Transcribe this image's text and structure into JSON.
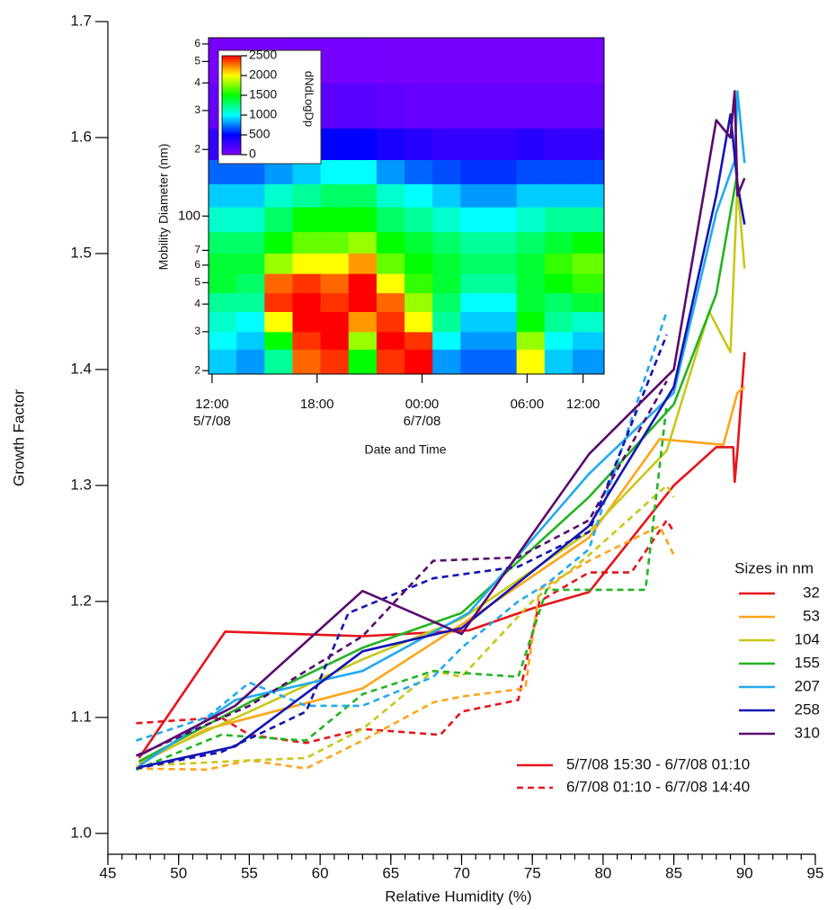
{
  "chart_data": [
    {
      "type": "line",
      "xlabel": "Relative Humidity (%)",
      "ylabel": "Growth Factor",
      "xlim": [
        45,
        95
      ],
      "xticks": [
        45,
        50,
        55,
        60,
        65,
        70,
        75,
        80,
        85,
        90,
        95
      ],
      "ylim": [
        0.982,
        1.7
      ],
      "yticks": [
        {
          "value": 1.0,
          "label": "1.0"
        },
        1.1,
        1.2,
        1.3,
        1.4,
        1.5,
        1.6,
        1.7
      ],
      "legend_title": "Sizes in nm",
      "periods": [
        {
          "label": "5/7/08 15:30 - 6/7/08 01:10",
          "dashed": false
        },
        {
          "label": "6/7/08 01:10 - 6/7/08 14:40",
          "dashed": true
        }
      ],
      "series": [
        {
          "name": "32",
          "color": "#e8141b",
          "periods": [
            {
              "x": [
                47.2,
                53.3,
                63,
                70.5,
                75,
                79,
                85,
                88,
                89.2,
                89.3,
                89.5,
                90
              ],
              "values": [
                1.065,
                1.174,
                1.17,
                1.175,
                1.194,
                1.208,
                1.3,
                1.333,
                1.333,
                1.303,
                1.33,
                1.415
              ]
            },
            {
              "x": [
                47,
                53,
                55,
                59,
                63,
                68.5,
                70,
                74,
                75.5,
                79,
                82,
                84.5,
                85
              ],
              "values": [
                1.095,
                1.1,
                1.085,
                1.078,
                1.09,
                1.085,
                1.105,
                1.115,
                1.2,
                1.225,
                1.225,
                1.27,
                1.26
              ]
            }
          ]
        },
        {
          "name": "53",
          "color": "#ffa519",
          "periods": [
            {
              "x": [
                47.2,
                52,
                63,
                70,
                79,
                84,
                88.5,
                89.5,
                90
              ],
              "values": [
                1.06,
                1.09,
                1.125,
                1.18,
                1.255,
                1.34,
                1.335,
                1.38,
                1.385
              ]
            },
            {
              "x": [
                47,
                52,
                55,
                59,
                63,
                68,
                70,
                74.5,
                75.5,
                79,
                84,
                85
              ],
              "values": [
                1.056,
                1.055,
                1.063,
                1.056,
                1.08,
                1.113,
                1.118,
                1.125,
                1.21,
                1.235,
                1.265,
                1.24
              ]
            }
          ]
        },
        {
          "name": "104",
          "color": "#c8c819",
          "periods": [
            {
              "x": [
                47.2,
                55,
                63,
                70,
                79,
                84.5,
                87.5,
                89,
                89.5,
                90
              ],
              "values": [
                1.062,
                1.105,
                1.15,
                1.185,
                1.26,
                1.33,
                1.45,
                1.415,
                1.56,
                1.487
              ]
            },
            {
              "x": [
                47,
                55,
                59,
                63,
                68,
                70,
                75,
                79,
                84.5,
                85
              ],
              "values": [
                1.058,
                1.063,
                1.065,
                1.09,
                1.14,
                1.135,
                1.2,
                1.24,
                1.3,
                1.29
              ]
            }
          ]
        },
        {
          "name": "155",
          "color": "#22b422",
          "periods": [
            {
              "x": [
                47.2,
                55,
                63,
                70,
                79,
                85,
                88,
                89.5
              ],
              "values": [
                1.062,
                1.113,
                1.16,
                1.19,
                1.29,
                1.37,
                1.465,
                1.57
              ]
            },
            {
              "x": [
                47,
                53,
                59,
                63,
                68,
                74,
                76,
                80,
                83,
                84.5
              ],
              "values": [
                1.055,
                1.085,
                1.08,
                1.12,
                1.14,
                1.135,
                1.21,
                1.21,
                1.21,
                1.37
              ]
            }
          ]
        },
        {
          "name": "207",
          "color": "#22aaee",
          "periods": [
            {
              "x": [
                47.2,
                54,
                63,
                70.5,
                79,
                85,
                88,
                89.3,
                89.5,
                90
              ],
              "values": [
                1.058,
                1.115,
                1.14,
                1.19,
                1.31,
                1.38,
                1.535,
                1.58,
                1.64,
                1.578
              ]
            },
            {
              "x": [
                47,
                52,
                55,
                59,
                63,
                68,
                70,
                74,
                76,
                79,
                84.5
              ],
              "values": [
                1.08,
                1.1,
                1.13,
                1.11,
                1.11,
                1.135,
                1.16,
                1.2,
                1.215,
                1.245,
                1.45
              ]
            }
          ]
        },
        {
          "name": "258",
          "color": "#1414b4",
          "periods": [
            {
              "x": [
                47.2,
                54,
                63,
                70,
                79,
                85,
                88,
                89,
                89.5,
                90
              ],
              "values": [
                1.057,
                1.075,
                1.157,
                1.177,
                1.265,
                1.385,
                1.55,
                1.62,
                1.56,
                1.525
              ]
            },
            {
              "x": [
                47,
                53,
                59,
                62,
                63,
                68,
                74,
                79,
                84.5
              ],
              "values": [
                1.056,
                1.07,
                1.105,
                1.19,
                1.195,
                1.22,
                1.23,
                1.26,
                1.43
              ]
            }
          ]
        },
        {
          "name": "310",
          "color": "#5a0a6e",
          "periods": [
            {
              "x": [
                47.2,
                54,
                63,
                70,
                79,
                85,
                88,
                89,
                89.3,
                89.5,
                90
              ],
              "values": [
                1.067,
                1.11,
                1.209,
                1.172,
                1.327,
                1.4,
                1.615,
                1.6,
                1.64,
                1.55,
                1.565
              ]
            },
            {
              "x": [
                47,
                55,
                63,
                68,
                74,
                79,
                84.5
              ],
              "values": [
                1.067,
                1.11,
                1.17,
                1.235,
                1.238,
                1.27,
                1.39
              ]
            }
          ]
        }
      ]
    },
    {
      "type": "heatmap",
      "xlabel": "Date and Time",
      "ylabel": "Mobility Diameter (nm)",
      "colorbar_label": "dNdLogDp",
      "xlim": [
        -0.2,
        22.4
      ],
      "xticks": [
        {
          "value": 0,
          "label": "12:00",
          "sublabel": "5/7/08"
        },
        {
          "value": 6,
          "label": "18:00"
        },
        {
          "value": 12,
          "label": "00:00",
          "sublabel": "6/7/08"
        },
        {
          "value": 18,
          "label": "06:00"
        },
        {
          "value": 21.2,
          "label": "12:00"
        }
      ],
      "ylim": [
        19.3,
        640
      ],
      "log_y": true,
      "yticks": [
        {
          "value": 20,
          "label": "2"
        },
        {
          "value": 30,
          "label": "3"
        },
        {
          "value": 40,
          "label": "4"
        },
        {
          "value": 50,
          "label": "5"
        },
        {
          "value": 60,
          "label": "6"
        },
        {
          "value": 70,
          "label": "7"
        },
        100,
        {
          "value": 200,
          "label": "2"
        },
        {
          "value": 300,
          "label": "3"
        },
        {
          "value": 400,
          "label": "4"
        },
        {
          "value": 500,
          "label": "5"
        },
        {
          "value": 600,
          "label": "6"
        }
      ],
      "clim": [
        0,
        2500
      ],
      "cticks": [
        0,
        500,
        1000,
        1500,
        2000,
        2500
      ],
      "x_edges": [
        -0.2,
        1.4,
        3,
        4.6,
        6.2,
        7.8,
        9.4,
        11,
        12.6,
        14.2,
        15.8,
        17.4,
        19,
        20.6,
        22.4
      ],
      "y_edges": [
        19.3,
        25,
        30,
        37,
        45,
        55,
        68,
        85,
        110,
        140,
        180,
        250,
        400,
        640
      ],
      "z": [
        [
          900,
          800,
          1200,
          2300,
          2400,
          1500,
          2400,
          2500,
          800,
          700,
          700,
          2000,
          900,
          800
        ],
        [
          1000,
          900,
          1500,
          2400,
          2500,
          1800,
          2500,
          2400,
          1000,
          800,
          800,
          1800,
          1000,
          900
        ],
        [
          1100,
          1000,
          2000,
          2500,
          2500,
          2200,
          2400,
          2000,
          1200,
          900,
          900,
          1500,
          1200,
          1100
        ],
        [
          1200,
          1200,
          2400,
          2500,
          2400,
          2500,
          2300,
          1800,
          1300,
          1000,
          1000,
          1400,
          1300,
          1400
        ],
        [
          1400,
          1300,
          2300,
          2400,
          2300,
          2500,
          2000,
          1600,
          1400,
          1200,
          1200,
          1400,
          1500,
          1600
        ],
        [
          1400,
          1400,
          1800,
          2000,
          2000,
          2200,
          1700,
          1500,
          1400,
          1300,
          1300,
          1400,
          1600,
          1700
        ],
        [
          1300,
          1300,
          1500,
          1700,
          1700,
          1800,
          1500,
          1400,
          1300,
          1200,
          1200,
          1300,
          1400,
          1500
        ],
        [
          1100,
          1100,
          1300,
          1500,
          1500,
          1500,
          1300,
          1200,
          1100,
          1000,
          1000,
          1100,
          1200,
          1200
        ],
        [
          900,
          900,
          1100,
          1200,
          1300,
          1300,
          1100,
          1000,
          900,
          800,
          800,
          900,
          900,
          900
        ],
        [
          700,
          700,
          800,
          900,
          1000,
          1000,
          800,
          700,
          650,
          600,
          600,
          650,
          650,
          650
        ],
        [
          300,
          300,
          400,
          500,
          500,
          500,
          400,
          350,
          300,
          300,
          300,
          350,
          300,
          300
        ],
        [
          100,
          100,
          120,
          150,
          150,
          150,
          120,
          100,
          100,
          100,
          100,
          100,
          100,
          100
        ],
        [
          30,
          30,
          30,
          40,
          40,
          40,
          30,
          30,
          30,
          30,
          30,
          30,
          30,
          30
        ]
      ]
    }
  ]
}
